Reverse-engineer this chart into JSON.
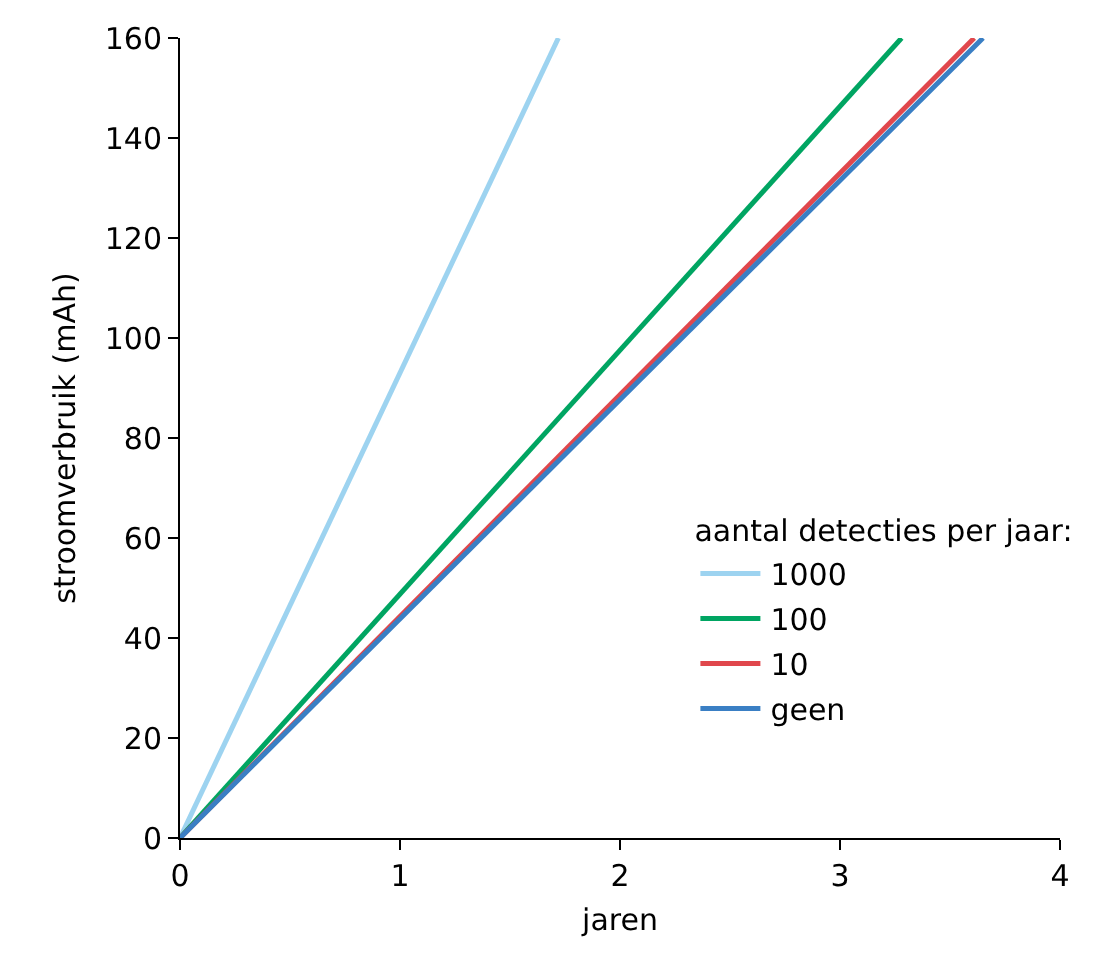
{
  "chart_data": {
    "type": "line",
    "xlabel": "jaren",
    "ylabel": "stroomverbruik (mAh)",
    "legend_title": "aantal detecties per jaar:",
    "legend": "right",
    "grid": false,
    "xlim": [
      0,
      4
    ],
    "xticks": [
      0,
      1,
      2,
      3,
      4
    ],
    "ylim": [
      0,
      160
    ],
    "yticks": [
      0,
      20,
      40,
      60,
      80,
      100,
      120,
      140,
      160
    ],
    "series": [
      {
        "name": "1000",
        "color": "#9dd3f0",
        "x": [
          0,
          1.72
        ],
        "values": [
          0,
          160
        ]
      },
      {
        "name": "100",
        "color": "#00a562",
        "x": [
          0,
          3.28
        ],
        "values": [
          0,
          160
        ]
      },
      {
        "name": "10",
        "color": "#e0474c",
        "x": [
          0,
          3.61
        ],
        "values": [
          0,
          160
        ]
      },
      {
        "name": "geen",
        "color": "#3a7fc4",
        "x": [
          0,
          3.65
        ],
        "values": [
          0,
          160
        ]
      }
    ]
  }
}
